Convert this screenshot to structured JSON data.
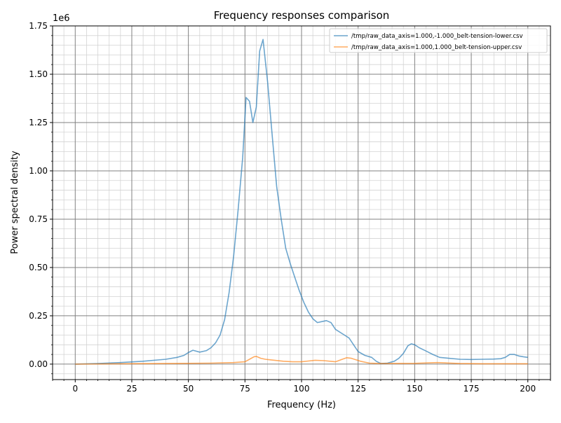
{
  "chart_data": {
    "type": "line",
    "title": "Frequency responses comparison",
    "xlabel": "Frequency (Hz)",
    "ylabel": "Power spectral density",
    "y_offset_label": "1e6",
    "xlim": [
      -10,
      210
    ],
    "ylim": [
      -0.08,
      1.75
    ],
    "y_scale": 1000000,
    "x_ticks": [
      0,
      25,
      50,
      75,
      100,
      125,
      150,
      175,
      200
    ],
    "x_tick_labels": [
      "0",
      "25",
      "50",
      "75",
      "100",
      "125",
      "150",
      "175",
      "200"
    ],
    "y_ticks": [
      0.0,
      0.25,
      0.5,
      0.75,
      1.0,
      1.25,
      1.5,
      1.75
    ],
    "y_tick_labels": [
      "0.00",
      "0.25",
      "0.50",
      "0.75",
      "1.00",
      "1.25",
      "1.50",
      "1.75"
    ],
    "grid": true,
    "minor_grid": true,
    "legend_position": "top-right",
    "series": [
      {
        "name": "/tmp/raw_data_axis=1.000,-1.000_belt-tension-lower.csv",
        "color": "#1f77b4",
        "x": [
          0,
          10,
          20,
          30,
          40,
          45,
          48,
          50,
          52,
          55,
          58,
          60,
          62,
          64,
          66,
          68,
          70,
          72,
          74,
          75.5,
          77,
          78.5,
          80,
          81.5,
          83,
          85,
          87,
          89,
          91,
          93,
          95,
          97,
          99,
          101,
          103,
          105,
          107,
          109,
          111,
          113,
          115,
          117,
          119,
          121,
          123,
          125,
          128,
          131,
          133,
          135,
          138,
          141,
          143,
          145,
          147,
          148.5,
          150,
          152,
          155,
          158,
          161,
          165,
          170,
          175,
          180,
          185,
          188,
          190,
          192,
          194,
          196,
          198,
          200
        ],
        "y": [
          0.0,
          0.003,
          0.008,
          0.015,
          0.025,
          0.035,
          0.045,
          0.06,
          0.072,
          0.062,
          0.07,
          0.085,
          0.11,
          0.15,
          0.23,
          0.37,
          0.56,
          0.8,
          1.07,
          1.38,
          1.36,
          1.25,
          1.33,
          1.62,
          1.68,
          1.46,
          1.19,
          0.92,
          0.75,
          0.6,
          0.52,
          0.45,
          0.38,
          0.32,
          0.27,
          0.235,
          0.215,
          0.22,
          0.225,
          0.215,
          0.18,
          0.165,
          0.15,
          0.135,
          0.1,
          0.065,
          0.045,
          0.035,
          0.015,
          0.003,
          0.005,
          0.015,
          0.03,
          0.055,
          0.095,
          0.105,
          0.1,
          0.085,
          0.068,
          0.05,
          0.035,
          0.03,
          0.025,
          0.024,
          0.025,
          0.026,
          0.028,
          0.035,
          0.05,
          0.05,
          0.042,
          0.038,
          0.035
        ]
      },
      {
        "name": "/tmp/raw_data_axis=1.000,1.000_belt-tension-upper.csv",
        "color": "#ff7f0e",
        "x": [
          0,
          20,
          40,
          60,
          70,
          75,
          77,
          79,
          80,
          82,
          84,
          88,
          92,
          96,
          100,
          103,
          106,
          110,
          115,
          118,
          120,
          122,
          126,
          130,
          135,
          150,
          160,
          170,
          180,
          190,
          200
        ],
        "y": [
          0.0,
          0.002,
          0.003,
          0.005,
          0.008,
          0.012,
          0.025,
          0.038,
          0.04,
          0.03,
          0.025,
          0.02,
          0.015,
          0.012,
          0.012,
          0.016,
          0.02,
          0.018,
          0.012,
          0.025,
          0.033,
          0.03,
          0.015,
          0.005,
          0.003,
          0.004,
          0.008,
          0.003,
          0.002,
          0.002,
          0.002
        ]
      }
    ]
  }
}
